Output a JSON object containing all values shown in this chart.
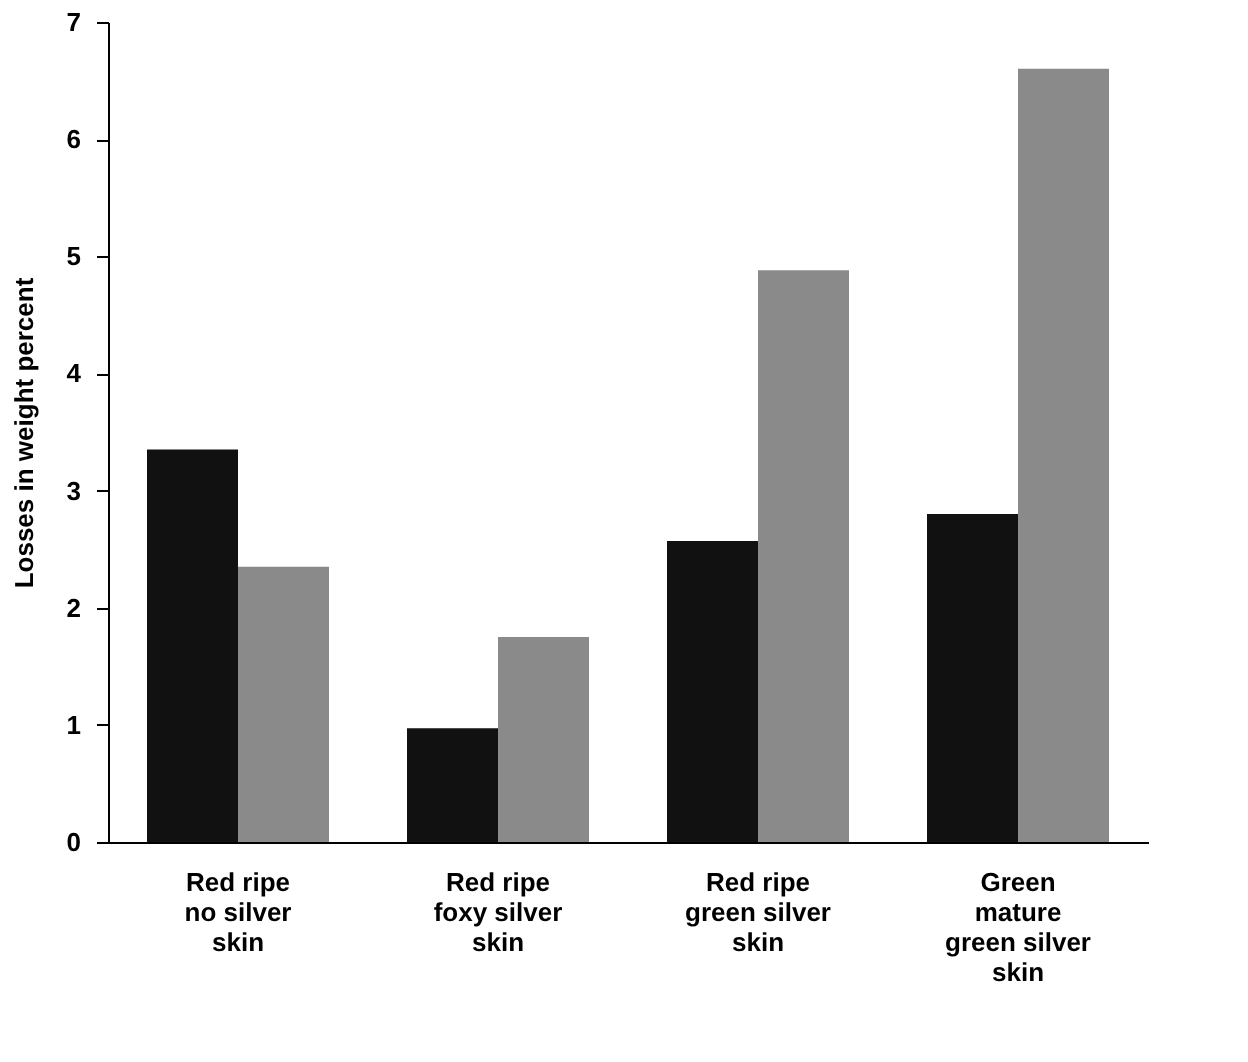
{
  "chart_data": {
    "type": "bar",
    "ylabel": "Losses in weight percent",
    "categories": [
      "Red ripe\nno silver\nskin",
      "Red ripe\nfoxy silver\nskin",
      "Red ripe\ngreen silver\nskin",
      "Green\nmature\ngreen silver\nskin"
    ],
    "series": [
      {
        "color": "#111111",
        "values": [
          3.35,
          0.97,
          2.57,
          2.8
        ]
      },
      {
        "color": "#8a8a8a",
        "values": [
          2.35,
          1.75,
          4.88,
          6.6
        ]
      }
    ],
    "ylim": [
      0,
      7
    ],
    "yticks": [
      0,
      1,
      2,
      3,
      4,
      5,
      6,
      7
    ],
    "grid": false,
    "legend": false
  }
}
